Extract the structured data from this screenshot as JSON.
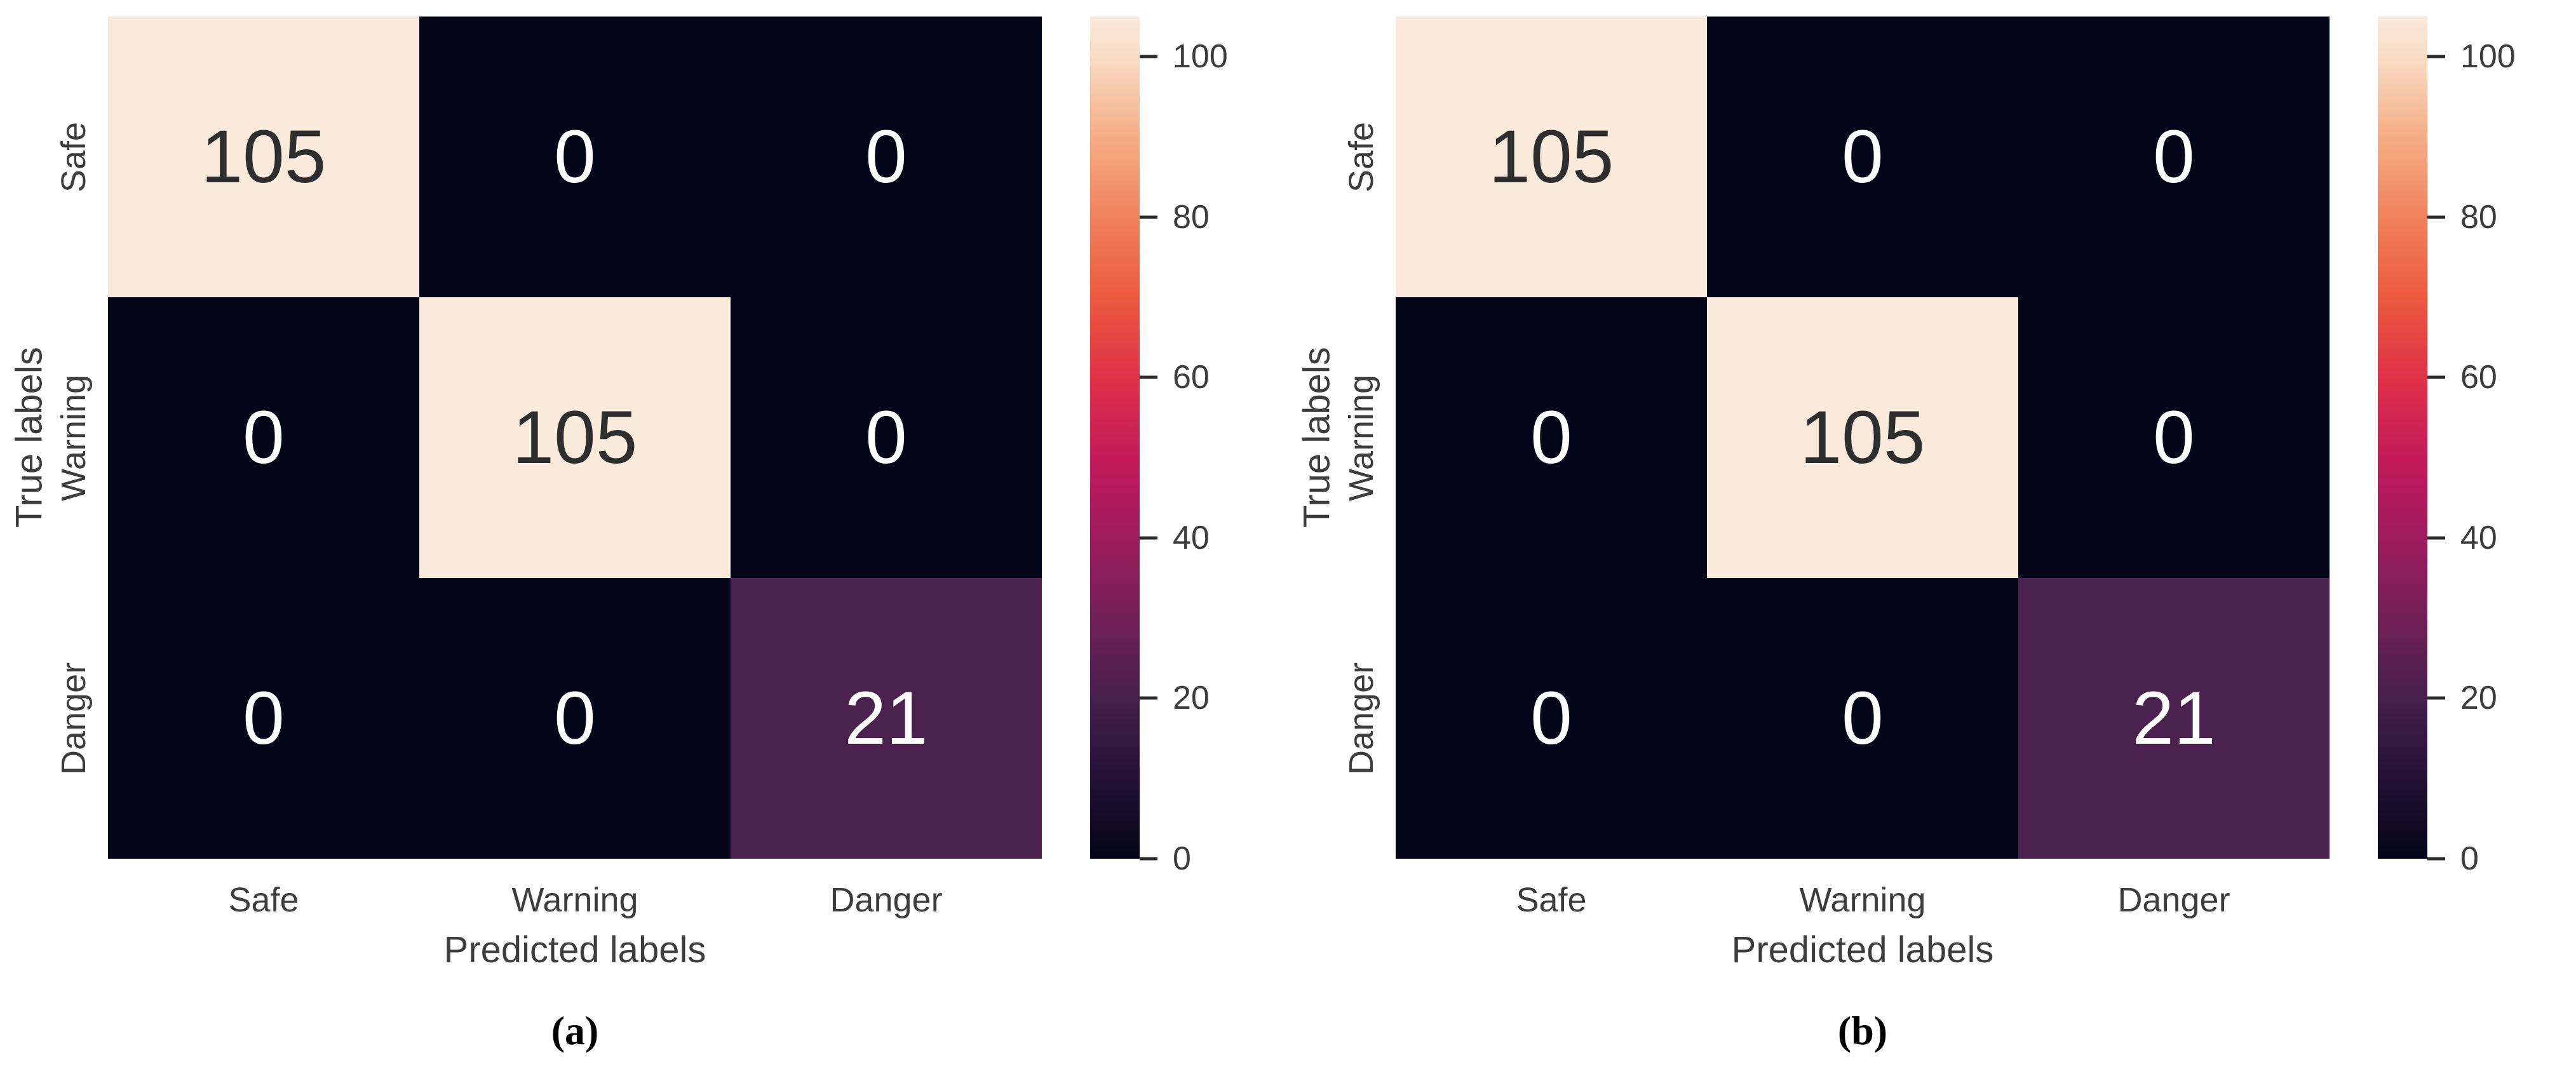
{
  "figure": {
    "background": "#ffffff",
    "text_color": "#3d3d3d",
    "colormap_name": "rocket",
    "colormap_stops": [
      {
        "pct": 0,
        "color": "#040518"
      },
      {
        "pct": 9.5,
        "color": "#231136"
      },
      {
        "pct": 19.0,
        "color": "#461F4D"
      },
      {
        "pct": 28.6,
        "color": "#722057"
      },
      {
        "pct": 38.1,
        "color": "#9E1B5F"
      },
      {
        "pct": 47.6,
        "color": "#C41A59"
      },
      {
        "pct": 57.1,
        "color": "#E03147"
      },
      {
        "pct": 66.7,
        "color": "#ED5A3F"
      },
      {
        "pct": 76.2,
        "color": "#F0825C"
      },
      {
        "pct": 85.7,
        "color": "#F5AD85"
      },
      {
        "pct": 95.2,
        "color": "#F8DCC5"
      },
      {
        "pct": 100,
        "color": "#FAE9DB"
      }
    ],
    "panels": [
      {
        "caption": "(a)",
        "xlabel": "Predicted labels",
        "ylabel": "True labels",
        "xticks": [
          "Safe",
          "Warning",
          "Danger"
        ],
        "yticks": [
          "Safe",
          "Warning",
          "Danger"
        ],
        "cells": [
          {
            "value": "105",
            "bg": "#FAEADC",
            "fg": "#2e2e2e"
          },
          {
            "value": "0",
            "bg": "#040518",
            "fg": "#ffffff"
          },
          {
            "value": "0",
            "bg": "#040518",
            "fg": "#ffffff"
          },
          {
            "value": "0",
            "bg": "#040518",
            "fg": "#ffffff"
          },
          {
            "value": "105",
            "bg": "#FAEADC",
            "fg": "#2e2e2e"
          },
          {
            "value": "0",
            "bg": "#040518",
            "fg": "#ffffff"
          },
          {
            "value": "0",
            "bg": "#040518",
            "fg": "#ffffff"
          },
          {
            "value": "0",
            "bg": "#040518",
            "fg": "#ffffff"
          },
          {
            "value": "21",
            "bg": "#4B2150",
            "fg": "#ffffff"
          }
        ],
        "colorbar_ticks": [
          {
            "label": "0",
            "pct": 0
          },
          {
            "label": "20",
            "pct": 19.048
          },
          {
            "label": "40",
            "pct": 38.095
          },
          {
            "label": "60",
            "pct": 57.143
          },
          {
            "label": "80",
            "pct": 76.19
          },
          {
            "label": "100",
            "pct": 95.238
          }
        ]
      },
      {
        "caption": "(b)",
        "xlabel": "Predicted labels",
        "ylabel": "True labels",
        "xticks": [
          "Safe",
          "Warning",
          "Danger"
        ],
        "yticks": [
          "Safe",
          "Warning",
          "Danger"
        ],
        "cells": [
          {
            "value": "105",
            "bg": "#FAEADC",
            "fg": "#2e2e2e"
          },
          {
            "value": "0",
            "bg": "#040518",
            "fg": "#ffffff"
          },
          {
            "value": "0",
            "bg": "#040518",
            "fg": "#ffffff"
          },
          {
            "value": "0",
            "bg": "#040518",
            "fg": "#ffffff"
          },
          {
            "value": "105",
            "bg": "#FAEADC",
            "fg": "#2e2e2e"
          },
          {
            "value": "0",
            "bg": "#040518",
            "fg": "#ffffff"
          },
          {
            "value": "0",
            "bg": "#040518",
            "fg": "#ffffff"
          },
          {
            "value": "0",
            "bg": "#040518",
            "fg": "#ffffff"
          },
          {
            "value": "21",
            "bg": "#4B2150",
            "fg": "#ffffff"
          }
        ],
        "colorbar_ticks": [
          {
            "label": "0",
            "pct": 0
          },
          {
            "label": "20",
            "pct": 19.048
          },
          {
            "label": "40",
            "pct": 38.095
          },
          {
            "label": "60",
            "pct": 57.143
          },
          {
            "label": "80",
            "pct": 76.19
          },
          {
            "label": "100",
            "pct": 95.238
          }
        ]
      }
    ]
  },
  "chart_data": [
    {
      "type": "heatmap",
      "caption": "(a)",
      "x": [
        "Safe",
        "Warning",
        "Danger"
      ],
      "y": [
        "Safe",
        "Warning",
        "Danger"
      ],
      "values": [
        [
          105,
          0,
          0
        ],
        [
          0,
          105,
          0
        ],
        [
          0,
          0,
          21
        ]
      ],
      "xlabel": "Predicted labels",
      "ylabel": "True labels",
      "colormap": "rocket",
      "colorbar_range": [
        0,
        105
      ],
      "colorbar_ticks": [
        0,
        20,
        40,
        60,
        80,
        100
      ],
      "annotations": "cell counts drawn in each cell",
      "grid": false,
      "legend_position": "right-colorbar"
    },
    {
      "type": "heatmap",
      "caption": "(b)",
      "x": [
        "Safe",
        "Warning",
        "Danger"
      ],
      "y": [
        "Safe",
        "Warning",
        "Danger"
      ],
      "values": [
        [
          105,
          0,
          0
        ],
        [
          0,
          105,
          0
        ],
        [
          0,
          0,
          21
        ]
      ],
      "xlabel": "Predicted labels",
      "ylabel": "True labels",
      "colormap": "rocket",
      "colorbar_range": [
        0,
        105
      ],
      "colorbar_ticks": [
        0,
        20,
        40,
        60,
        80,
        100
      ],
      "annotations": "cell counts drawn in each cell",
      "grid": false,
      "legend_position": "right-colorbar"
    }
  ]
}
